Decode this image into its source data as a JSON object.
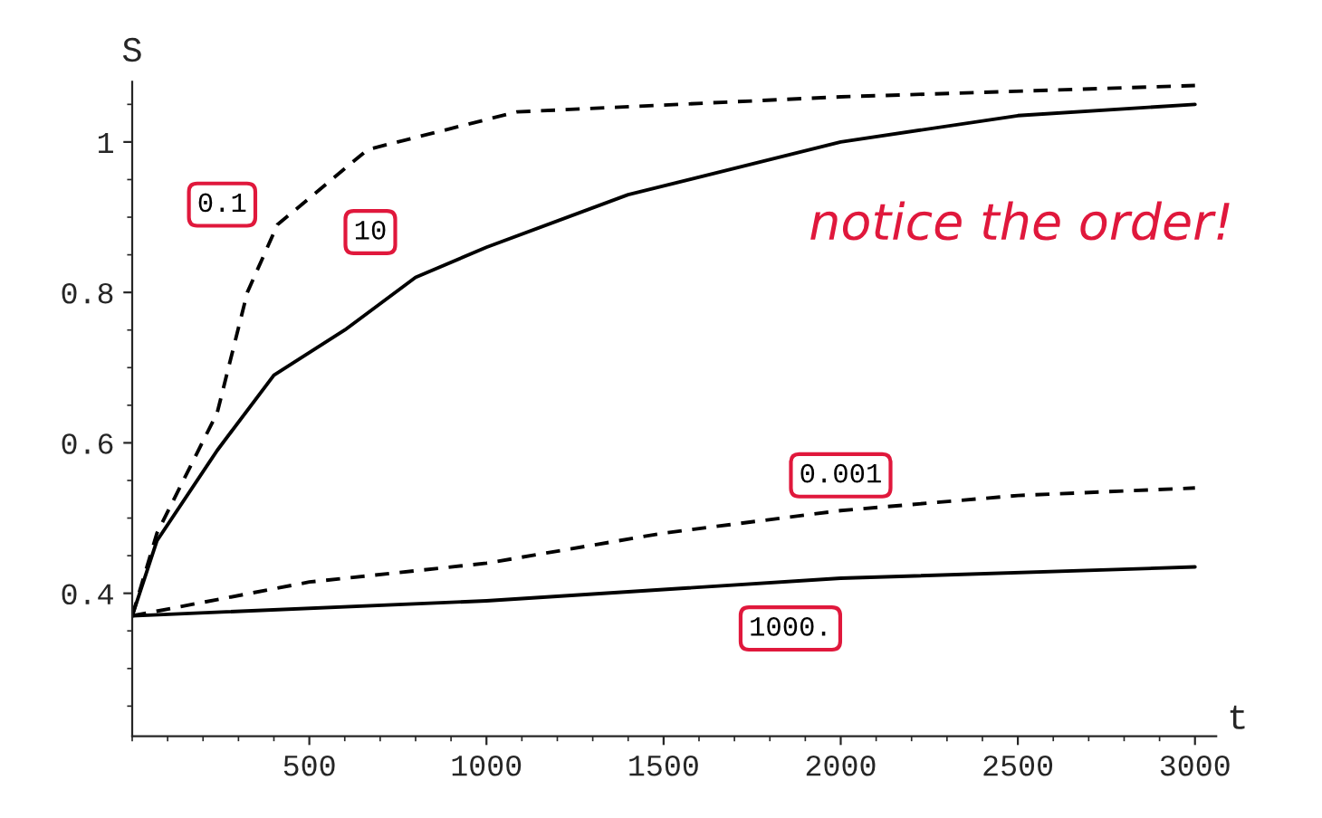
{
  "chart_data": {
    "type": "line",
    "xlabel": "t",
    "ylabel": "S",
    "xlim": [
      0,
      3060
    ],
    "ylim": [
      0.21,
      1.08
    ],
    "xticks": [
      500,
      1000,
      1500,
      2000,
      2500,
      3000
    ],
    "yticks": [
      0.4,
      0.6,
      0.8,
      {
        "value": 1,
        "label": "1"
      }
    ],
    "grid": false,
    "legend": false,
    "marker": "none",
    "series": [
      {
        "name": "0.1",
        "color": "#000000",
        "line_style": "dashed",
        "x": [
          0,
          70,
          240,
          325,
          410,
          665,
          1086,
          2000,
          3000
        ],
        "values": [
          0.37,
          0.48,
          0.64,
          0.8,
          0.89,
          0.99,
          1.04,
          1.06,
          1.075
        ]
      },
      {
        "name": "10",
        "color": "#000000",
        "line_style": "solid",
        "x": [
          0,
          70,
          240,
          400,
          600,
          800,
          1000,
          1400,
          2000,
          2500,
          3000
        ],
        "values": [
          0.37,
          0.47,
          0.59,
          0.69,
          0.75,
          0.82,
          0.86,
          0.93,
          1.0,
          1.035,
          1.05
        ]
      },
      {
        "name": "0.001",
        "color": "#000000",
        "line_style": "dashed",
        "x": [
          0,
          500,
          1000,
          1500,
          2000,
          2500,
          3000
        ],
        "values": [
          0.37,
          0.415,
          0.44,
          0.48,
          0.51,
          0.53,
          0.54
        ]
      },
      {
        "name": "1000.",
        "color": "#000000",
        "line_style": "solid",
        "x": [
          0,
          1000,
          2000,
          3000
        ],
        "values": [
          0.37,
          0.39,
          0.42,
          0.435
        ]
      }
    ],
    "annotations": [
      "notice the order!"
    ]
  }
}
